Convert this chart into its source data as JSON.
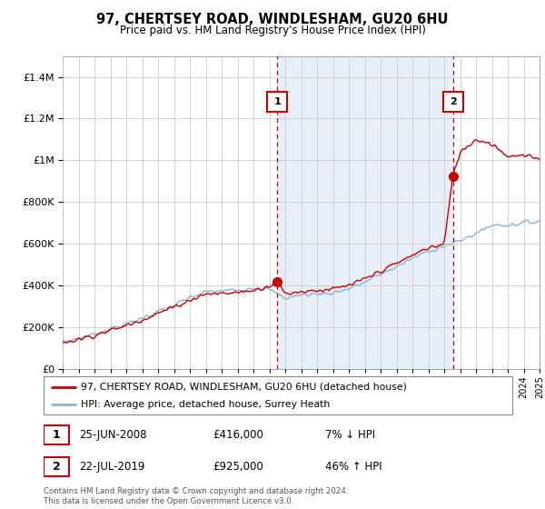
{
  "title": "97, CHERTSEY ROAD, WINDLESHAM, GU20 6HU",
  "subtitle": "Price paid vs. HM Land Registry's House Price Index (HPI)",
  "legend_line1": "97, CHERTSEY ROAD, WINDLESHAM, GU20 6HU (detached house)",
  "legend_line2": "HPI: Average price, detached house, Surrey Heath",
  "transaction1_date": "25-JUN-2008",
  "transaction1_price": "£416,000",
  "transaction1_hpi": "7% ↓ HPI",
  "transaction2_date": "22-JUL-2019",
  "transaction2_price": "£925,000",
  "transaction2_hpi": "46% ↑ HPI",
  "footer": "Contains HM Land Registry data © Crown copyright and database right 2024.\nThis data is licensed under the Open Government Licence v3.0.",
  "hpi_color": "#8ab4d8",
  "price_color": "#cc0000",
  "shade_color": "#e8eef8",
  "dashed_color": "#cc0000",
  "ylim": [
    0,
    1500000
  ],
  "yticks": [
    0,
    200000,
    400000,
    600000,
    800000,
    1000000,
    1200000,
    1400000
  ],
  "transaction1_x": 2008.5,
  "transaction2_x": 2019.55,
  "xmin": 1995,
  "xmax": 2025
}
